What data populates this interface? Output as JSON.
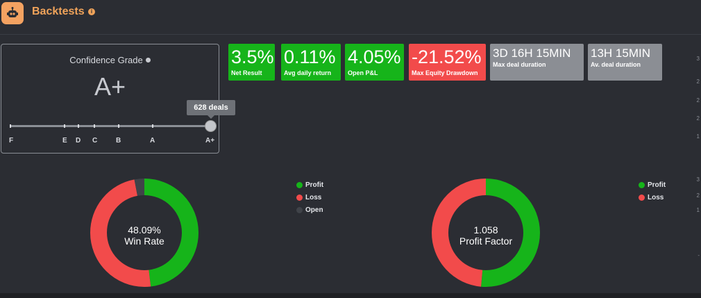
{
  "header": {
    "title": "Backtests",
    "info_icon": "info-icon",
    "logo_icon": "robot-icon"
  },
  "confidence": {
    "title": "Confidence Grade",
    "grade": "A+",
    "tooltip": "628 deals",
    "scale": [
      "F",
      "E",
      "D",
      "C",
      "B",
      "A",
      "A+"
    ],
    "selected_index": 6
  },
  "stats": [
    {
      "value": "3.5%",
      "label": "Net Result",
      "color": "#16b41a"
    },
    {
      "value": "0.11%",
      "label": "Avg daily return",
      "color": "#16b41a"
    },
    {
      "value": "4.05%",
      "label": "Open P&L",
      "color": "#16b41a"
    },
    {
      "value": "-21.52%",
      "label": "Max Equity Drawdown",
      "color": "#f24b4b"
    },
    {
      "value": "3D 16H 15MIN",
      "label": "Max deal duration",
      "color": "#8b8e94"
    },
    {
      "value": "13H 15MIN",
      "label": "Av. deal duration",
      "color": "#8b8e94"
    }
  ],
  "win_rate": {
    "value": "48.09%",
    "label": "Win Rate",
    "legend": [
      "Profit",
      "Loss",
      "Open"
    ],
    "colors": {
      "profit": "#16b41a",
      "loss": "#f24b4b",
      "open": "#404349"
    },
    "fractions": {
      "profit": 0.4809,
      "loss": 0.4891,
      "open": 0.03
    }
  },
  "profit_factor": {
    "value": "1.058",
    "label": "Profit Factor",
    "legend": [
      "Profit",
      "Loss"
    ],
    "colors": {
      "profit": "#16b41a",
      "loss": "#f24b4b"
    },
    "fractions": {
      "profit": 0.514,
      "loss": 0.486
    }
  },
  "right_axis": [
    "3",
    "2",
    "2",
    "2",
    "1",
    "3",
    "2",
    "1",
    "-"
  ]
}
